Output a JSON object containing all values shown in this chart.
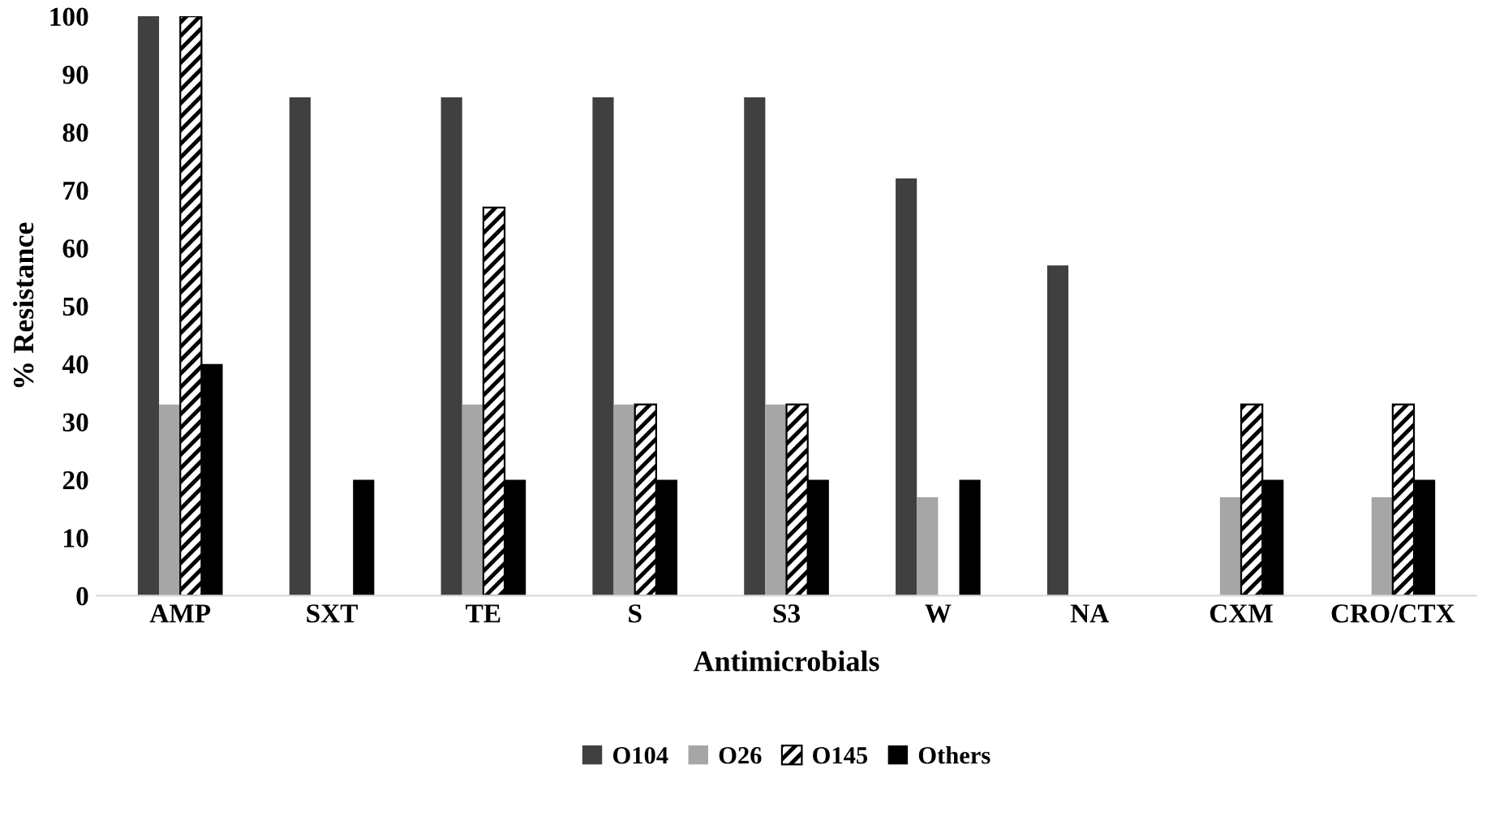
{
  "chart_data": {
    "type": "bar",
    "xlabel": "Antimicrobials",
    "ylabel": "% Resistance",
    "categories": [
      "AMP",
      "SXT",
      "TE",
      "S",
      "S3",
      "W",
      "NA",
      "CXM",
      "CRO/CTX"
    ],
    "series": [
      {
        "name": "O104",
        "color": "#404040",
        "values": [
          100,
          86,
          86,
          86,
          86,
          72,
          57,
          null,
          null
        ]
      },
      {
        "name": "O26",
        "color": "#a6a6a6",
        "values": [
          33,
          null,
          33,
          33,
          33,
          17,
          null,
          17,
          17
        ]
      },
      {
        "name": "O145",
        "color": "#000000",
        "values": [
          100,
          null,
          67,
          33,
          33,
          null,
          null,
          33,
          33
        ]
      },
      {
        "name": "Others",
        "color": "#000000",
        "values": [
          40,
          20,
          20,
          20,
          20,
          20,
          null,
          20,
          20
        ]
      }
    ],
    "ylim": [
      0,
      100
    ],
    "yticks": [
      0,
      10,
      20,
      30,
      40,
      50,
      60,
      70,
      80,
      90,
      100
    ],
    "grid": false,
    "legend": "bottom"
  }
}
